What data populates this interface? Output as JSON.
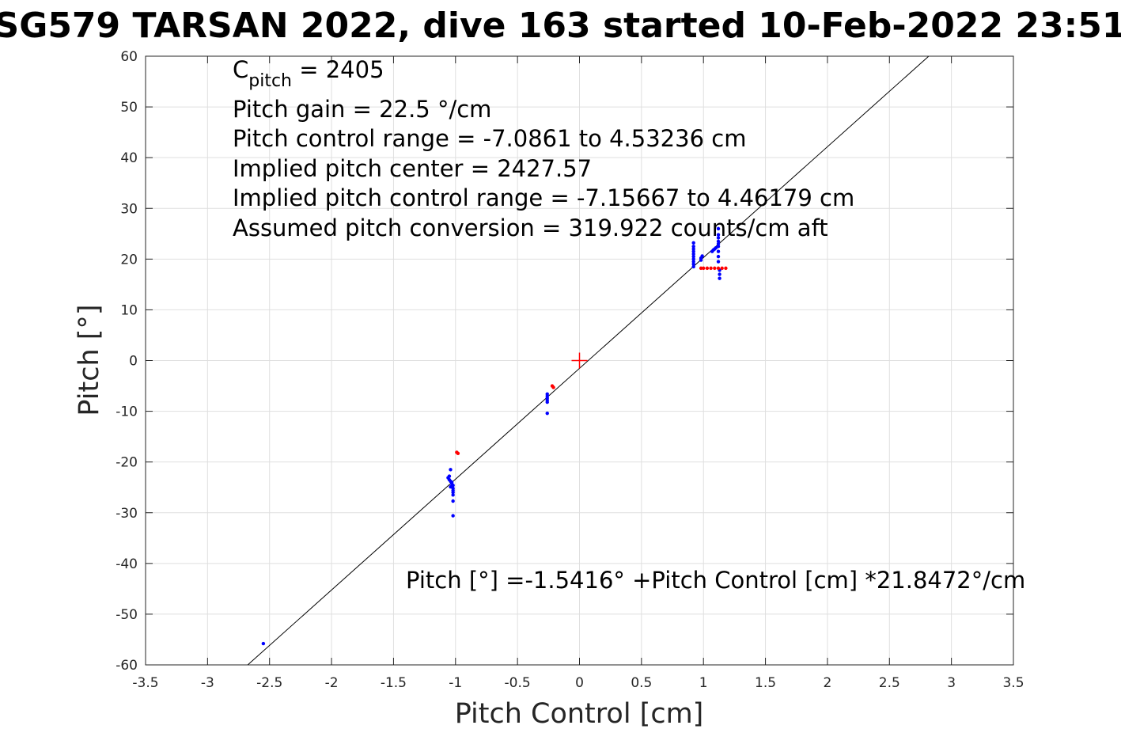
{
  "chart_data": {
    "type": "scatter",
    "title": "SG579 TARSAN 2022, dive 163 started 10-Feb-2022 23:51",
    "xlabel": "Pitch Control [cm]",
    "ylabel": "Pitch [°]",
    "xlim": [
      -3.5,
      3.5
    ],
    "ylim": [
      -60,
      60
    ],
    "x_ticks": [
      -3.5,
      -3,
      -2.5,
      -2,
      -1.5,
      -1,
      -0.5,
      0,
      0.5,
      1,
      1.5,
      2,
      2.5,
      3,
      3.5
    ],
    "x_tick_labels": [
      "-3.5",
      "-3",
      "-2.5",
      "-2",
      "-1.5",
      "-1",
      "-0.5",
      "0",
      "0.5",
      "1",
      "1.5",
      "2",
      "2.5",
      "3",
      "3.5"
    ],
    "y_ticks": [
      -60,
      -50,
      -40,
      -30,
      -20,
      -10,
      0,
      10,
      20,
      30,
      40,
      50,
      60
    ],
    "y_tick_labels": [
      "-60",
      "-50",
      "-40",
      "-30",
      "-20",
      "-10",
      "0",
      "10",
      "20",
      "30",
      "40",
      "50",
      "60"
    ],
    "grid": true,
    "annotations": {
      "c_pitch_main": "C",
      "c_pitch_sub": "pitch",
      "c_pitch_value": " = 2405",
      "pitch_gain": "Pitch gain = 22.5 °/cm",
      "control_range": "Pitch control range = -7.0861 to 4.53236 cm",
      "implied_center": "Implied pitch center = 2427.57",
      "implied_range": "Implied pitch control range = -7.15667 to 4.46179 cm",
      "conversion": "Assumed pitch conversion = 319.922 counts/cm aft",
      "fit_equation": "Pitch [°] =-1.5416° +Pitch Control [cm] *21.8472°/cm"
    },
    "fit_line": {
      "intercept": -1.5416,
      "slope": 21.8472,
      "color": "#000000"
    },
    "center_marker": {
      "x": 0,
      "y": 0,
      "color": "#ff0000"
    },
    "series": [
      {
        "color": "#0000ff",
        "points": [
          [
            -2.55,
            -55.8
          ],
          [
            -1.04,
            -21.5
          ],
          [
            -1.05,
            -22.8
          ],
          [
            -1.06,
            -23.1
          ],
          [
            -1.05,
            -23.5
          ],
          [
            -1.04,
            -23.8
          ],
          [
            -1.03,
            -24.0
          ],
          [
            -1.03,
            -24.3
          ],
          [
            -1.02,
            -24.6
          ],
          [
            -1.04,
            -24.9
          ],
          [
            -1.02,
            -25.2
          ],
          [
            -1.02,
            -25.6
          ],
          [
            -1.02,
            -26.0
          ],
          [
            -1.02,
            -26.5
          ],
          [
            -1.02,
            -27.7
          ],
          [
            -1.02,
            -30.6
          ],
          [
            -0.26,
            -6.6
          ],
          [
            -0.26,
            -7.0
          ],
          [
            -0.26,
            -7.4
          ],
          [
            -0.26,
            -7.8
          ],
          [
            -0.26,
            -8.2
          ],
          [
            -0.26,
            -10.4
          ],
          [
            0.92,
            18.5
          ],
          [
            0.92,
            19.0
          ],
          [
            0.92,
            19.5
          ],
          [
            0.92,
            20.0
          ],
          [
            0.92,
            20.5
          ],
          [
            0.92,
            21.0
          ],
          [
            0.92,
            21.5
          ],
          [
            0.92,
            22.0
          ],
          [
            0.92,
            22.5
          ],
          [
            0.92,
            23.2
          ],
          [
            0.98,
            19.8
          ],
          [
            0.98,
            20.2
          ],
          [
            0.99,
            20.6
          ],
          [
            1.07,
            21.5
          ],
          [
            1.08,
            21.8
          ],
          [
            1.09,
            22.0
          ],
          [
            1.1,
            22.2
          ],
          [
            1.12,
            19.5
          ],
          [
            1.12,
            20.5
          ],
          [
            1.12,
            21.5
          ],
          [
            1.12,
            22.5
          ],
          [
            1.12,
            23.0
          ],
          [
            1.12,
            23.5
          ],
          [
            1.12,
            24.2
          ],
          [
            1.12,
            24.8
          ],
          [
            1.12,
            26.0
          ],
          [
            1.13,
            16.2
          ],
          [
            1.13,
            17.0
          ],
          [
            1.13,
            17.8
          ]
        ]
      },
      {
        "color": "#ff0000",
        "points": [
          [
            -0.99,
            -18.1
          ],
          [
            -0.98,
            -18.3
          ],
          [
            -0.22,
            -5.0
          ],
          [
            -0.21,
            -5.3
          ],
          [
            0.98,
            18.2
          ],
          [
            1.0,
            18.2
          ],
          [
            1.03,
            18.2
          ],
          [
            1.06,
            18.2
          ],
          [
            1.09,
            18.2
          ],
          [
            1.12,
            18.2
          ],
          [
            1.15,
            18.2
          ],
          [
            1.18,
            18.2
          ]
        ]
      }
    ]
  }
}
